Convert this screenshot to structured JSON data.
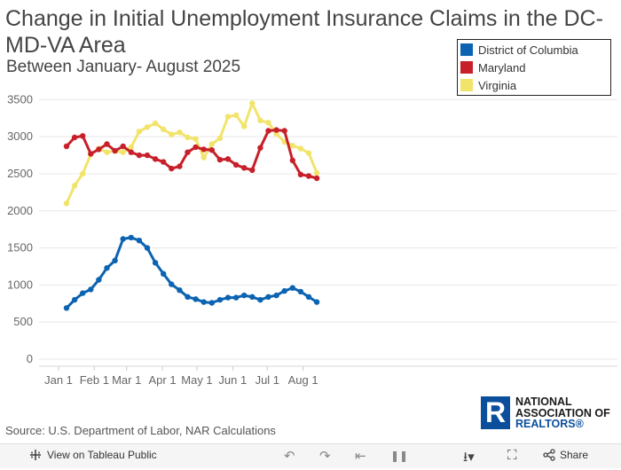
{
  "title": "Change in Initial Unemployment Insurance Claims in the DC-MD-VA Area",
  "subtitle": "Between January- August 2025",
  "source": "Source: U.S. Department of Labor, NAR Calculations",
  "logo": {
    "line1": "NATIONAL",
    "line2": "ASSOCIATION OF",
    "line3": "REALTORS",
    "mark": "®",
    "r_letter": "R"
  },
  "toolbar": {
    "view_label": "View on Tableau Public",
    "share_label": "Share",
    "view_icon": "tableau-icon",
    "undo_icon": "undo-icon",
    "redo_icon": "redo-icon",
    "revert_icon": "revert-icon",
    "pause_icon": "pause-icon",
    "download_icon": "download-icon",
    "fullscreen_icon": "fullscreen-icon",
    "share_icon": "share-icon"
  },
  "colors": {
    "dc": "#0b63b1",
    "md": "#c8202a",
    "va": "#f2e46b",
    "grid": "#e8e8e8",
    "axis_text": "#666666"
  },
  "chart_data": {
    "type": "line",
    "x_unit": "week",
    "x_tick_labels": [
      "Jan 1",
      "Feb 1",
      "Mar 1",
      "Apr 1",
      "May 1",
      "Jun 1",
      "Jul 1",
      "Aug 1"
    ],
    "x_tick_weeks": [
      0,
      4.43,
      8.43,
      12.86,
      17.14,
      21.57,
      25.86,
      30.29
    ],
    "ylim": [
      0,
      3600
    ],
    "y_ticks": [
      0,
      500,
      1000,
      1500,
      2000,
      2500,
      3000,
      3500
    ],
    "legend_position": "top-right",
    "series": [
      {
        "name": "District of Columbia",
        "color": "#0b63b1",
        "values": [
          690,
          800,
          890,
          940,
          1070,
          1230,
          1330,
          1620,
          1640,
          1600,
          1500,
          1300,
          1150,
          1010,
          930,
          840,
          810,
          770,
          760,
          800,
          830,
          830,
          860,
          840,
          800,
          840,
          860,
          920,
          960,
          910,
          840,
          770
        ]
      },
      {
        "name": "Maryland",
        "color": "#c8202a",
        "values": [
          2870,
          2990,
          3010,
          2770,
          2830,
          2900,
          2810,
          2870,
          2790,
          2750,
          2750,
          2700,
          2660,
          2570,
          2600,
          2790,
          2860,
          2830,
          2820,
          2690,
          2700,
          2620,
          2580,
          2550,
          2850,
          3080,
          3090,
          3080,
          2680,
          2490,
          2470,
          2440
        ]
      },
      {
        "name": "Virginia",
        "color": "#f2e46b",
        "values": [
          2100,
          2340,
          2500,
          2760,
          2840,
          2790,
          2810,
          2790,
          2860,
          3070,
          3130,
          3180,
          3100,
          3030,
          3060,
          2990,
          2970,
          2720,
          2900,
          2980,
          3270,
          3290,
          3140,
          3450,
          3220,
          3190,
          3040,
          2930,
          2880,
          2840,
          2780,
          2510
        ]
      }
    ]
  }
}
